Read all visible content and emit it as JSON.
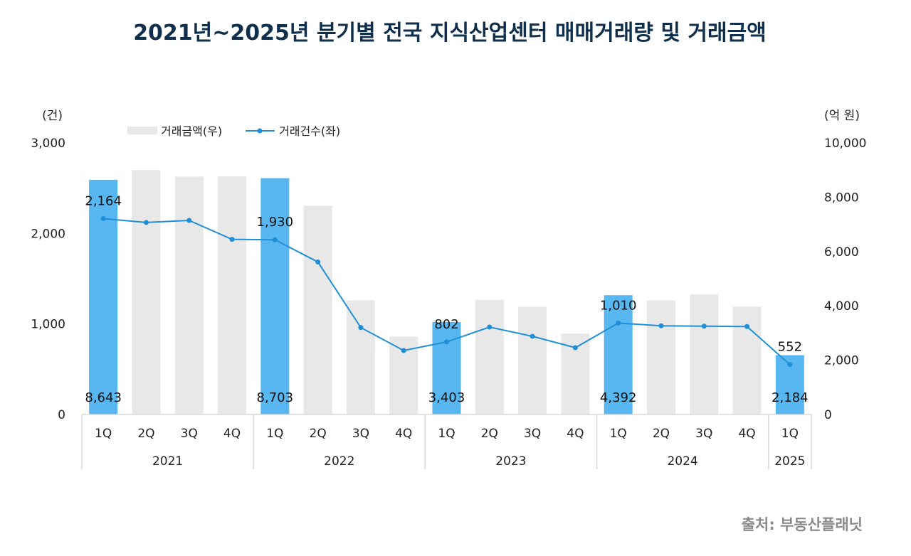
{
  "chart_data": {
    "type": "bar+line",
    "title": "2021년~2025년 분기별 전국 지식산업센터 매매거래량 및 거래금액",
    "source": "출처: 부동산플래닛",
    "left_axis": {
      "unit": "(건)",
      "ylim": [
        0,
        3000
      ],
      "ticks": [
        "0",
        "1,000",
        "2,000",
        "3,000"
      ],
      "tick_values": [
        0,
        1000,
        2000,
        3000
      ]
    },
    "right_axis": {
      "unit": "(억 원)",
      "ylim": [
        0,
        10000
      ],
      "ticks": [
        "0",
        "2,000",
        "4,000",
        "6,000",
        "8,000",
        "10,000"
      ],
      "tick_values": [
        0,
        2000,
        4000,
        6000,
        8000,
        10000
      ]
    },
    "legend": {
      "placement": "top-left",
      "items": [
        "거래금액(우)",
        "거래건수(좌)"
      ]
    },
    "categories": [
      "1Q",
      "2Q",
      "3Q",
      "4Q",
      "1Q",
      "2Q",
      "3Q",
      "4Q",
      "1Q",
      "2Q",
      "3Q",
      "4Q",
      "1Q",
      "2Q",
      "3Q",
      "4Q",
      "1Q"
    ],
    "years": [
      {
        "label": "2021",
        "count": 4
      },
      {
        "label": "2022",
        "count": 4
      },
      {
        "label": "2023",
        "count": 4
      },
      {
        "label": "2024",
        "count": 4
      },
      {
        "label": "2025",
        "count": 1
      }
    ],
    "series": [
      {
        "name": "거래금액(우)",
        "type": "bar",
        "axis": "right",
        "values": [
          8643,
          9000,
          8760,
          8770,
          8703,
          7690,
          4200,
          2870,
          3403,
          4220,
          3960,
          2980,
          4392,
          4200,
          4420,
          3970,
          2184
        ],
        "highlight": [
          true,
          false,
          false,
          false,
          true,
          false,
          false,
          false,
          true,
          false,
          false,
          false,
          true,
          false,
          false,
          false,
          true
        ],
        "data_labels": [
          "8,643",
          "",
          "",
          "",
          "8,703",
          "",
          "",
          "",
          "3,403",
          "",
          "",
          "",
          "4,392",
          "",
          "",
          "",
          "2,184"
        ]
      },
      {
        "name": "거래건수(좌)",
        "type": "line",
        "axis": "left",
        "values": [
          2164,
          2121,
          2144,
          1935,
          1930,
          1685,
          961,
          707,
          802,
          966,
          864,
          738,
          1010,
          980,
          976,
          972,
          552
        ],
        "data_labels": [
          "2,164",
          "",
          "",
          "",
          "1,930",
          "",
          "",
          "",
          "802",
          "",
          "",
          "",
          "1,010",
          "",
          "",
          "",
          "552"
        ]
      }
    ],
    "colors": {
      "bar_highlight": "#58b7f0",
      "bar": "#e8e8e8",
      "line": "#1f8fd8",
      "title": "#0f2f4d",
      "axis": "#d9d9d9"
    },
    "grid": false
  }
}
